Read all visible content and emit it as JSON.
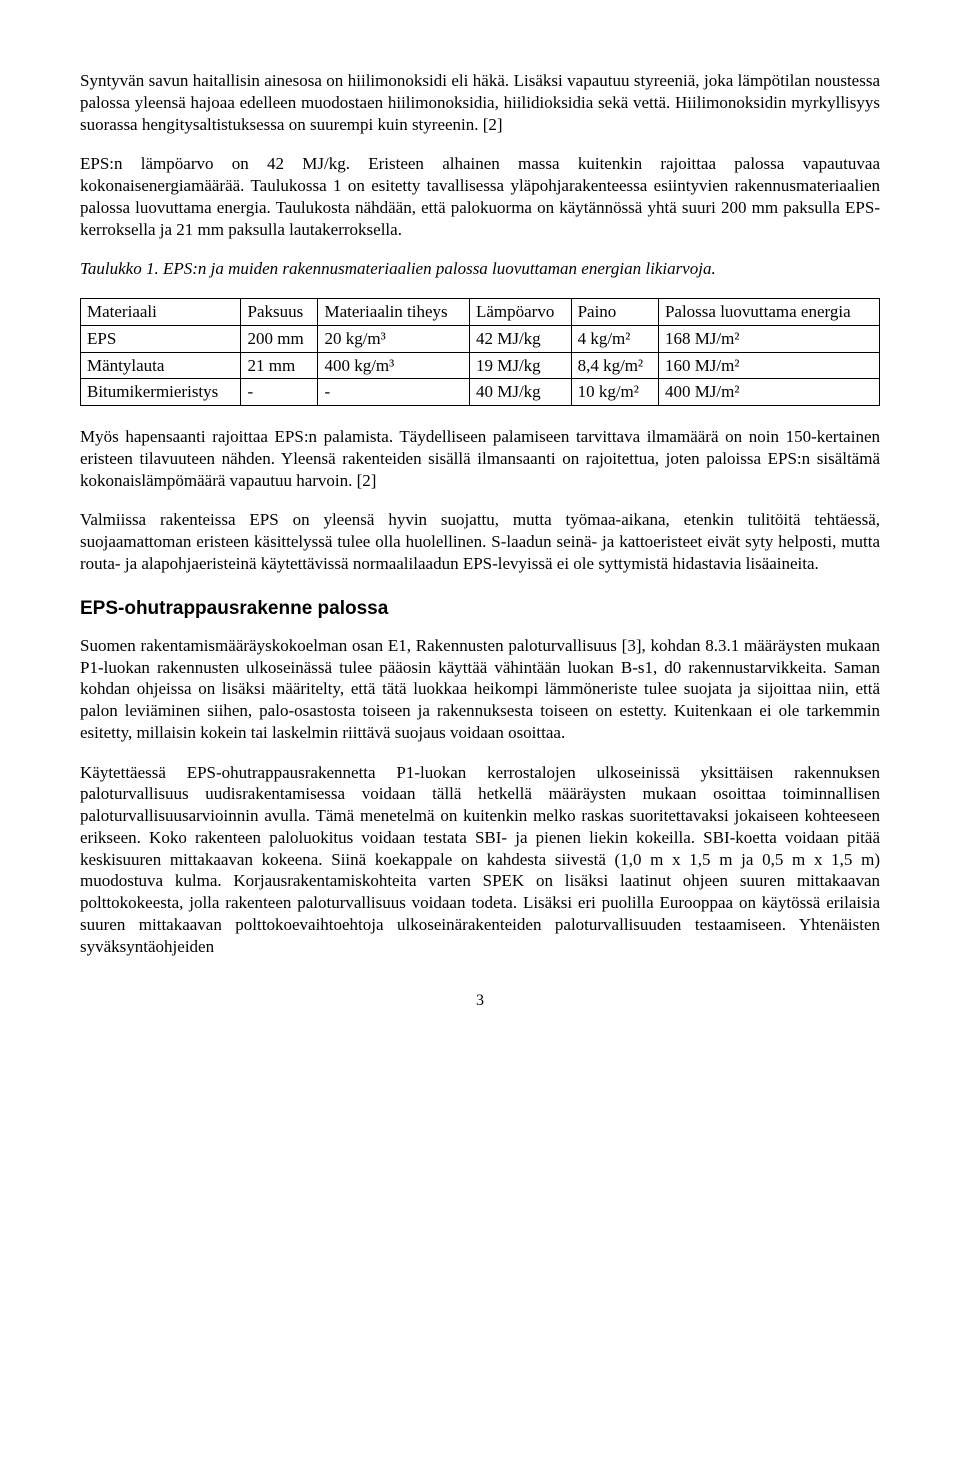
{
  "p1": "Syntyvän savun haitallisin ainesosa on hiilimonoksidi eli häkä. Lisäksi vapautuu styreeniä, joka lämpötilan noustessa palossa yleensä hajoaa edelleen muodostaen hiilimonoksidia, hiilidioksidia sekä vettä. Hiilimonoksidin myrkyllisyys suorassa hengitysaltistuksessa on suurempi kuin styreenin. [2]",
  "p2": "EPS:n lämpöarvo on 42 MJ/kg. Eristeen alhainen massa kuitenkin rajoittaa palossa vapautuvaa kokonaisenergiamäärää. Taulukossa 1 on esitetty tavallisessa yläpohjarakenteessa esiintyvien rakennusmateriaalien palossa luovuttama energia. Taulukosta nähdään, että palokuorma on käytännössä yhtä suuri 200 mm paksulla EPS-kerroksella ja 21 mm paksulla lautakerroksella.",
  "table_caption": "Taulukko 1. EPS:n ja muiden rakennusmateriaalien palossa luovuttaman energian likiarvoja.",
  "table": {
    "headers": [
      "Materiaali",
      "Paksuus",
      "Materiaalin tiheys",
      "Lämpöarvo",
      "Paino",
      "Palossa luovuttama energia"
    ],
    "rows": [
      [
        "EPS",
        "200 mm",
        "20 kg/m³",
        "42 MJ/kg",
        "4 kg/m²",
        "168 MJ/m²"
      ],
      [
        "Mäntylauta",
        "21 mm",
        "400 kg/m³",
        "19 MJ/kg",
        "8,4 kg/m²",
        "160 MJ/m²"
      ],
      [
        "Bitumikermieristys",
        "-",
        "-",
        "40 MJ/kg",
        "10 kg/m²",
        "400 MJ/m²"
      ]
    ]
  },
  "p3": "Myös hapensaanti rajoittaa EPS:n palamista. Täydelliseen palamiseen tarvittava ilmamäärä on noin 150-kertainen eristeen tilavuuteen nähden. Yleensä rakenteiden sisällä ilmansaanti on rajoitettua, joten paloissa EPS:n sisältämä kokonaislämpömäärä vapautuu harvoin. [2]",
  "p4": "Valmiissa rakenteissa EPS on yleensä hyvin suojattu, mutta työmaa-aikana, etenkin tulitöitä tehtäessä, suojaamattoman eristeen käsittelyssä tulee olla huolellinen. S-laadun seinä- ja kattoeristeet eivät syty helposti, mutta routa- ja alapohjaeristeinä käytettävissä normaalilaadun EPS-levyissä ei ole syttymistä hidastavia lisäaineita.",
  "section_heading": "EPS-ohutrappausrakenne palossa",
  "p5": "Suomen rakentamismääräyskokoelman osan E1, Rakennusten paloturvallisuus [3], kohdan 8.3.1 määräysten mukaan P1-luokan rakennusten ulkoseinässä tulee pääosin käyttää vähintään luokan B-s1, d0 rakennustarvikkeita. Saman kohdan ohjeissa on lisäksi määritelty, että tätä luokkaa heikompi lämmöneriste tulee suojata ja sijoittaa niin, että palon leviäminen siihen, palo-osastosta toiseen ja rakennuksesta toiseen on estetty. Kuitenkaan ei ole tarkemmin esitetty, millaisin kokein tai laskelmin riittävä suojaus voidaan osoittaa.",
  "p6": "Käytettäessä EPS-ohutrappausrakennetta P1-luokan kerrostalojen ulkoseinissä yksittäisen rakennuksen paloturvallisuus uudisrakentamisessa voidaan tällä hetkellä määräysten mukaan osoittaa toiminnallisen paloturvallisuusarvioinnin avulla. Tämä menetelmä on kuitenkin melko raskas suoritettavaksi jokaiseen kohteeseen erikseen. Koko rakenteen paloluokitus voidaan testata SBI- ja pienen liekin kokeilla. SBI-koetta voidaan pitää keskisuuren mittakaavan kokeena. Siinä koekappale on kahdesta siivestä (1,0 m x 1,5 m ja 0,5 m x 1,5 m) muodostuva kulma. Korjausrakentamiskohteita varten SPEK on lisäksi laatinut ohjeen suuren mittakaavan polttokokeesta, jolla rakenteen paloturvallisuus voidaan todeta. Lisäksi eri puolilla Eurooppaa on käytössä erilaisia suuren mittakaavan polttokoevaihtoehtoja ulkoseinärakenteiden paloturvallisuuden testaamiseen. Yhtenäisten syväksyntäohjeiden",
  "page_number": "3"
}
